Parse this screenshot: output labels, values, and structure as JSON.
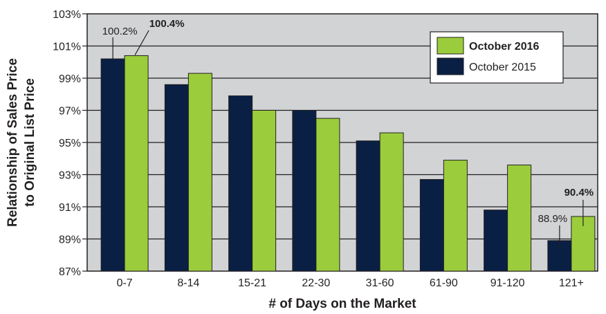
{
  "chart_data": {
    "type": "bar",
    "xlabel": "# of Days on the Market",
    "ylabel_line1": "Relationship of Sales Price",
    "ylabel_line2": "to Original List Price",
    "categories": [
      "0-7",
      "8-14",
      "15-21",
      "22-30",
      "31-60",
      "61-90",
      "91-120",
      "121+"
    ],
    "ylim": [
      87,
      103
    ],
    "yticks": [
      87,
      89,
      91,
      93,
      95,
      97,
      99,
      101,
      103
    ],
    "ytick_labels": [
      "87%",
      "89%",
      "91%",
      "93%",
      "95%",
      "97%",
      "99%",
      "101%",
      "103%"
    ],
    "grid": true,
    "legend_position": "top-right",
    "series": [
      {
        "name": "October 2015",
        "color": "#0a1f44",
        "values": [
          100.2,
          98.6,
          97.9,
          97.0,
          95.1,
          92.7,
          90.8,
          88.9
        ]
      },
      {
        "name": "October 2016",
        "color": "#9bcc3c",
        "values": [
          100.4,
          99.3,
          97.0,
          96.5,
          95.6,
          93.9,
          93.6,
          90.4
        ]
      }
    ],
    "legend_order": [
      "October 2016",
      "October 2015"
    ],
    "annotations": [
      {
        "text": "100.2%",
        "category": "0-7",
        "series": "October 2015",
        "bold": false
      },
      {
        "text": "100.4%",
        "category": "0-7",
        "series": "October 2016",
        "bold": true
      },
      {
        "text": "88.9%",
        "category": "121+",
        "series": "October 2015",
        "bold": false
      },
      {
        "text": "90.4%",
        "category": "121+",
        "series": "October 2016",
        "bold": true
      }
    ],
    "colors": {
      "plot_background": "#d1d3d4",
      "gridline": "#231f20",
      "bar_outline": "#231f20"
    }
  }
}
